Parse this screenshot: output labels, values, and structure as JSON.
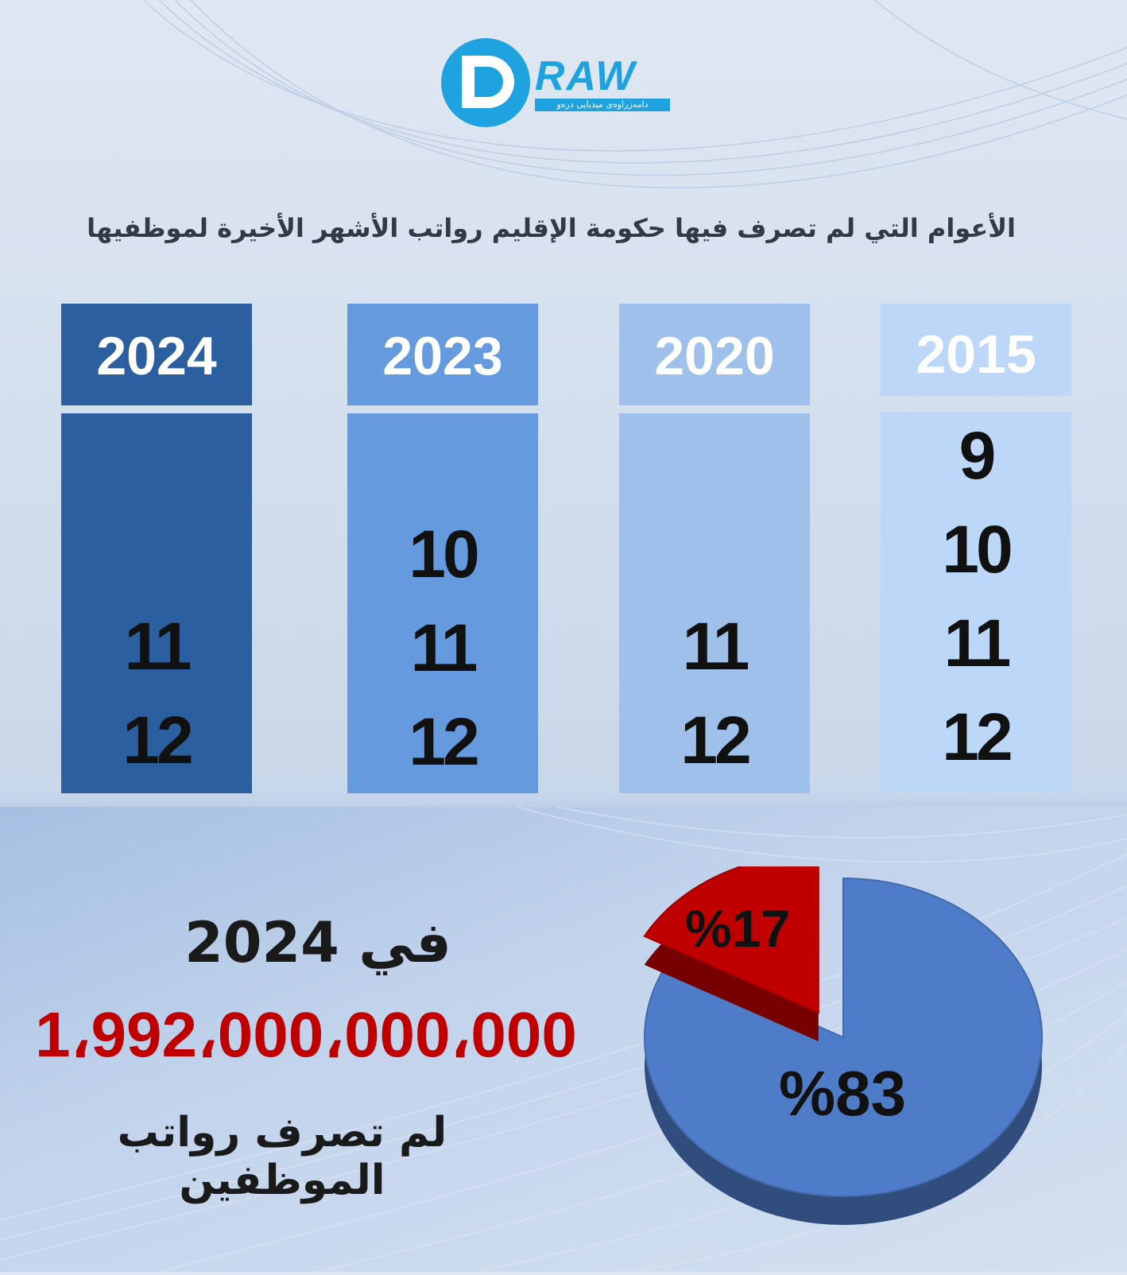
{
  "logo": {
    "word": "RAW",
    "tagline": "دامەزراوەی میدیایی درەو"
  },
  "heading": "الأعوام التي لم تصرف فيها حكومة الإقليم رواتب الأشهر الأخيرة لموظفيها",
  "columns": [
    {
      "year": "2024",
      "months": [
        "11",
        "12"
      ],
      "color": "#2b5fa0"
    },
    {
      "year": "2023",
      "months": [
        "10",
        "11",
        "12"
      ],
      "color": "#659ade"
    },
    {
      "year": "2020",
      "months": [
        "11",
        "12"
      ],
      "color": "#9ec0eb"
    },
    {
      "year": "2015",
      "months": [
        "9",
        "10",
        "11",
        "12"
      ],
      "color": "#bdd7f8"
    }
  ],
  "summary": {
    "year_line": "في 2024",
    "amount": "1،992،000،000،000",
    "caption": "لم تصرف رواتب الموظفين"
  },
  "chart_data": {
    "type": "pie",
    "slices": [
      {
        "value": 83,
        "label": "%83",
        "color": "#4f7cc9"
      },
      {
        "value": 17,
        "label": "%17",
        "color": "#c00000"
      }
    ]
  }
}
